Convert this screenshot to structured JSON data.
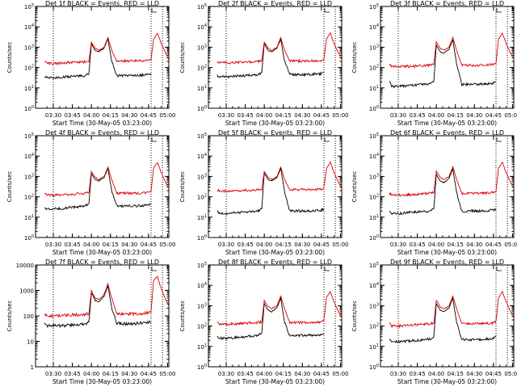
{
  "figure": {
    "colors": {
      "events": "#000000",
      "lld": "#dd0000",
      "axes": "#000000",
      "background": "#ffffff"
    }
  },
  "chart_data": [
    {
      "type": "line",
      "title": "Det 1f BLACK = Events, RED = LLD",
      "xlabel": "Start Time (30-May-05 03:23:00)",
      "ylabel": "Counts/sec",
      "x_tick_labels": [
        "03:30",
        "03:45",
        "04:00",
        "04:15",
        "04:30",
        "04:45",
        "05:00"
      ],
      "xlim_minutes": [
        -7,
        98
      ],
      "ylim": [
        1,
        100000
      ],
      "y_scale": "log",
      "y_tick_labels": [
        "10^0",
        "10^1",
        "10^2",
        "10^3",
        "10^4",
        "10^5"
      ],
      "marker_lines": [
        "03:30",
        "04:47",
        "04:56"
      ],
      "x": [
        "03:23",
        "03:25",
        "03:30",
        "03:40",
        "03:55",
        "03:58",
        "04:00",
        "04:03",
        "04:06",
        "04:10",
        "04:13",
        "04:16",
        "04:20",
        "04:35",
        "04:45",
        "04:47",
        "04:49",
        "04:52",
        "04:55",
        "04:58",
        "05:01"
      ],
      "series": [
        {
          "name": "Events",
          "values": [
            40,
            32,
            32,
            35,
            40,
            50,
            1500,
            700,
            600,
            900,
            2500,
            200,
            40,
            40,
            45,
            48,
            null,
            null,
            null,
            null,
            null
          ]
        },
        {
          "name": "LLD",
          "values": [
            200,
            160,
            160,
            170,
            190,
            200,
            1800,
            900,
            700,
            1000,
            3000,
            700,
            210,
            210,
            220,
            250,
            2500,
            5000,
            1500,
            600,
            250
          ]
        }
      ]
    },
    {
      "type": "line",
      "title": "Det 2f BLACK = Events, RED = LLD",
      "xlabel": "Start Time (30-May-05 03:23:00)",
      "ylabel": "Counts/sec",
      "x_tick_labels": [
        "03:30",
        "03:45",
        "04:00",
        "04:15",
        "04:30",
        "04:45",
        "05:00"
      ],
      "xlim_minutes": [
        -7,
        98
      ],
      "ylim": [
        1,
        100000
      ],
      "y_scale": "log",
      "y_tick_labels": [
        "10^0",
        "10^1",
        "10^2",
        "10^3",
        "10^4",
        "10^5"
      ],
      "marker_lines": [
        "03:30",
        "04:47",
        "04:56"
      ],
      "x": [
        "03:23",
        "03:25",
        "03:30",
        "03:40",
        "03:55",
        "03:58",
        "04:00",
        "04:03",
        "04:06",
        "04:10",
        "04:13",
        "04:16",
        "04:20",
        "04:35",
        "04:45",
        "04:47",
        "04:49",
        "04:52",
        "04:55",
        "04:58",
        "05:01"
      ],
      "series": [
        {
          "name": "Events",
          "values": [
            40,
            35,
            35,
            38,
            45,
            55,
            1500,
            700,
            600,
            900,
            2500,
            200,
            45,
            45,
            50,
            55,
            null,
            null,
            null,
            null,
            null
          ]
        },
        {
          "name": "LLD",
          "values": [
            200,
            170,
            170,
            180,
            200,
            210,
            1800,
            900,
            700,
            1000,
            3000,
            700,
            210,
            210,
            220,
            250,
            2500,
            5000,
            1500,
            600,
            250
          ]
        }
      ]
    },
    {
      "type": "line",
      "title": "Det 3f BLACK = Events, RED = LLD",
      "xlabel": "Start Time (30-May-05 03:23:00)",
      "ylabel": "Counts/sec",
      "x_tick_labels": [
        "03:30",
        "03:45",
        "04:00",
        "04:15",
        "04:30",
        "04:45",
        "05:00"
      ],
      "xlim_minutes": [
        -7,
        98
      ],
      "ylim": [
        1,
        100000
      ],
      "y_scale": "log",
      "y_tick_labels": [
        "10^0",
        "10^1",
        "10^2",
        "10^3",
        "10^4",
        "10^5"
      ],
      "marker_lines": [
        "03:30",
        "04:47",
        "04:56"
      ],
      "x": [
        "03:23",
        "03:25",
        "03:30",
        "03:40",
        "03:55",
        "03:58",
        "04:00",
        "04:03",
        "04:06",
        "04:10",
        "04:13",
        "04:16",
        "04:20",
        "04:35",
        "04:45",
        "04:47",
        "04:49",
        "04:52",
        "04:55",
        "04:58",
        "05:01"
      ],
      "series": [
        {
          "name": "Events",
          "values": [
            20,
            12,
            12,
            13,
            15,
            20,
            1300,
            600,
            500,
            800,
            2300,
            150,
            15,
            15,
            17,
            20,
            null,
            null,
            null,
            null,
            null
          ]
        },
        {
          "name": "LLD",
          "values": [
            150,
            110,
            110,
            115,
            130,
            150,
            1800,
            900,
            700,
            1000,
            3000,
            700,
            130,
            130,
            140,
            160,
            2500,
            5000,
            1500,
            600,
            250
          ]
        }
      ]
    },
    {
      "type": "line",
      "title": "Det 4f BLACK = Events, RED = LLD",
      "xlabel": "Start Time (30-May-05 03:23:00)",
      "ylabel": "Counts/sec",
      "x_tick_labels": [
        "03:30",
        "03:45",
        "04:00",
        "04:15",
        "04:30",
        "04:45",
        "05:00"
      ],
      "xlim_minutes": [
        -7,
        98
      ],
      "ylim": [
        1,
        100000
      ],
      "y_scale": "log",
      "y_tick_labels": [
        "10^0",
        "10^1",
        "10^2",
        "10^3",
        "10^4",
        "10^5"
      ],
      "marker_lines": [
        "03:30",
        "04:47",
        "04:56"
      ],
      "x": [
        "03:23",
        "03:25",
        "03:30",
        "03:40",
        "03:55",
        "03:58",
        "04:00",
        "04:03",
        "04:06",
        "04:10",
        "04:13",
        "04:16",
        "04:20",
        "04:35",
        "04:45",
        "04:47",
        "04:49",
        "04:52",
        "04:55",
        "04:58",
        "05:01"
      ],
      "series": [
        {
          "name": "Events",
          "values": [
            30,
            25,
            25,
            28,
            35,
            45,
            1400,
            700,
            600,
            900,
            2500,
            200,
            35,
            35,
            40,
            45,
            null,
            null,
            null,
            null,
            null
          ]
        },
        {
          "name": "LLD",
          "values": [
            150,
            120,
            120,
            130,
            150,
            160,
            1800,
            900,
            700,
            1000,
            3000,
            700,
            150,
            150,
            160,
            190,
            2500,
            5000,
            1500,
            600,
            250
          ]
        }
      ]
    },
    {
      "type": "line",
      "title": "Det 5f BLACK = Events, RED = LLD",
      "xlabel": "Start Time (30-May-05 03:23:00)",
      "ylabel": "Counts/sec",
      "x_tick_labels": [
        "03:30",
        "03:45",
        "04:00",
        "04:15",
        "04:30",
        "04:45",
        "05:00"
      ],
      "xlim_minutes": [
        -7,
        98
      ],
      "ylim": [
        1,
        100000
      ],
      "y_scale": "log",
      "y_tick_labels": [
        "10^0",
        "10^1",
        "10^2",
        "10^3",
        "10^4",
        "10^5"
      ],
      "marker_lines": [
        "03:30",
        "04:47",
        "04:56"
      ],
      "x": [
        "03:23",
        "03:25",
        "03:30",
        "03:40",
        "03:55",
        "03:58",
        "04:00",
        "04:03",
        "04:06",
        "04:10",
        "04:13",
        "04:16",
        "04:20",
        "04:35",
        "04:45",
        "04:47",
        "04:49",
        "04:52",
        "04:55",
        "04:58",
        "05:01"
      ],
      "series": [
        {
          "name": "Events",
          "values": [
            20,
            15,
            15,
            17,
            20,
            25,
            1500,
            700,
            600,
            900,
            2500,
            180,
            20,
            20,
            22,
            25,
            null,
            null,
            null,
            null,
            null
          ]
        },
        {
          "name": "LLD",
          "values": [
            220,
            190,
            190,
            200,
            220,
            240,
            1800,
            900,
            700,
            1000,
            3000,
            700,
            230,
            230,
            240,
            270,
            2500,
            5000,
            1500,
            600,
            250
          ]
        }
      ]
    },
    {
      "type": "line",
      "title": "Det 6f BLACK = Events, RED = LLD",
      "xlabel": "Start Time (30-May-05 03:23:00)",
      "ylabel": "Counts/sec",
      "x_tick_labels": [
        "03:30",
        "03:45",
        "04:00",
        "04:15",
        "04:30",
        "04:45",
        "05:00"
      ],
      "xlim_minutes": [
        -7,
        98
      ],
      "ylim": [
        1,
        100000
      ],
      "y_scale": "log",
      "y_tick_labels": [
        "10^0",
        "10^1",
        "10^2",
        "10^3",
        "10^4",
        "10^5"
      ],
      "marker_lines": [
        "03:30",
        "04:47",
        "04:56"
      ],
      "x": [
        "03:23",
        "03:25",
        "03:30",
        "03:40",
        "03:55",
        "03:58",
        "04:00",
        "04:03",
        "04:06",
        "04:10",
        "04:13",
        "04:16",
        "04:20",
        "04:35",
        "04:45",
        "04:47",
        "04:49",
        "04:52",
        "04:55",
        "04:58",
        "05:01"
      ],
      "series": [
        {
          "name": "Events",
          "values": [
            20,
            15,
            15,
            17,
            20,
            25,
            1300,
            600,
            500,
            800,
            2300,
            160,
            20,
            20,
            22,
            25,
            null,
            null,
            null,
            null,
            null
          ]
        },
        {
          "name": "LLD",
          "values": [
            150,
            120,
            120,
            130,
            150,
            160,
            1800,
            900,
            700,
            1000,
            3000,
            700,
            150,
            150,
            160,
            190,
            2500,
            5000,
            1500,
            600,
            250
          ]
        }
      ]
    },
    {
      "type": "line",
      "title": "Det 7f BLACK = Events, RED = LLD",
      "xlabel": "Start Time (30-May-05 03:23:00)",
      "ylabel": "Counts/sec",
      "x_tick_labels": [
        "03:30",
        "03:45",
        "04:00",
        "04:15",
        "04:30",
        "04:45",
        "05:00"
      ],
      "xlim_minutes": [
        -7,
        98
      ],
      "ylim": [
        1,
        10000
      ],
      "y_scale": "log",
      "y_tick_labels": [
        "1",
        "10",
        "100",
        "1000",
        "10000"
      ],
      "marker_lines": [
        "03:30",
        "04:47",
        "04:56"
      ],
      "x": [
        "03:23",
        "03:25",
        "03:30",
        "03:40",
        "03:55",
        "03:58",
        "04:00",
        "04:03",
        "04:06",
        "04:10",
        "04:13",
        "04:16",
        "04:20",
        "04:35",
        "04:45",
        "04:47",
        "04:49",
        "04:52",
        "04:55",
        "04:58",
        "05:01"
      ],
      "series": [
        {
          "name": "Events",
          "values": [
            50,
            40,
            40,
            42,
            48,
            55,
            800,
            400,
            350,
            600,
            1500,
            200,
            50,
            50,
            55,
            60,
            null,
            null,
            null,
            null,
            null
          ]
        },
        {
          "name": "LLD",
          "values": [
            120,
            100,
            100,
            105,
            115,
            125,
            1000,
            500,
            450,
            700,
            1800,
            500,
            120,
            120,
            130,
            150,
            2500,
            3500,
            1200,
            500,
            250
          ]
        }
      ]
    },
    {
      "type": "line",
      "title": "Det 8f BLACK = Events, RED = LLD",
      "xlabel": "Start Time (30-May-05 03:23:00)",
      "ylabel": "Counts/sec",
      "x_tick_labels": [
        "03:30",
        "03:45",
        "04:00",
        "04:15",
        "04:30",
        "04:45",
        "05:00"
      ],
      "xlim_minutes": [
        -7,
        98
      ],
      "ylim": [
        1,
        100000
      ],
      "y_scale": "log",
      "y_tick_labels": [
        "10^0",
        "10^1",
        "10^2",
        "10^3",
        "10^4",
        "10^5"
      ],
      "marker_lines": [
        "03:30",
        "04:47",
        "04:56"
      ],
      "x": [
        "03:23",
        "03:25",
        "03:30",
        "03:40",
        "03:55",
        "03:58",
        "04:00",
        "04:03",
        "04:06",
        "04:10",
        "04:13",
        "04:16",
        "04:20",
        "04:35",
        "04:45",
        "04:47",
        "04:49",
        "04:52",
        "04:55",
        "04:58",
        "05:01"
      ],
      "series": [
        {
          "name": "Events",
          "values": [
            30,
            25,
            25,
            28,
            35,
            45,
            1300,
            600,
            500,
            800,
            2300,
            150,
            35,
            35,
            38,
            45,
            null,
            null,
            null,
            null,
            null
          ]
        },
        {
          "name": "LLD",
          "values": [
            150,
            120,
            120,
            130,
            150,
            160,
            1800,
            900,
            700,
            1000,
            3000,
            700,
            150,
            150,
            160,
            190,
            2500,
            5000,
            1500,
            600,
            250
          ]
        }
      ]
    },
    {
      "type": "line",
      "title": "Det 9f BLACK = Events, RED = LLD",
      "xlabel": "Start Time (30-May-05 03:23:00)",
      "ylabel": "Counts/sec",
      "x_tick_labels": [
        "03:30",
        "03:45",
        "04:00",
        "04:15",
        "04:30",
        "04:45",
        "05:00"
      ],
      "xlim_minutes": [
        -7,
        98
      ],
      "ylim": [
        1,
        100000
      ],
      "y_scale": "log",
      "y_tick_labels": [
        "10^0",
        "10^1",
        "10^2",
        "10^3",
        "10^4",
        "10^5"
      ],
      "marker_lines": [
        "03:30",
        "04:47",
        "04:56"
      ],
      "x": [
        "03:23",
        "03:25",
        "03:30",
        "03:40",
        "03:55",
        "03:58",
        "04:00",
        "04:03",
        "04:06",
        "04:10",
        "04:13",
        "04:16",
        "04:20",
        "04:35",
        "04:45",
        "04:47",
        "04:49",
        "04:52",
        "04:55",
        "04:58",
        "05:01"
      ],
      "series": [
        {
          "name": "Events",
          "values": [
            22,
            17,
            17,
            19,
            23,
            30,
            1300,
            600,
            500,
            800,
            2300,
            150,
            22,
            22,
            25,
            30,
            null,
            null,
            null,
            null,
            null
          ]
        },
        {
          "name": "LLD",
          "values": [
            130,
            100,
            100,
            110,
            130,
            140,
            1800,
            900,
            700,
            1000,
            3000,
            700,
            130,
            130,
            140,
            170,
            2500,
            5000,
            1500,
            600,
            250
          ]
        }
      ]
    }
  ]
}
